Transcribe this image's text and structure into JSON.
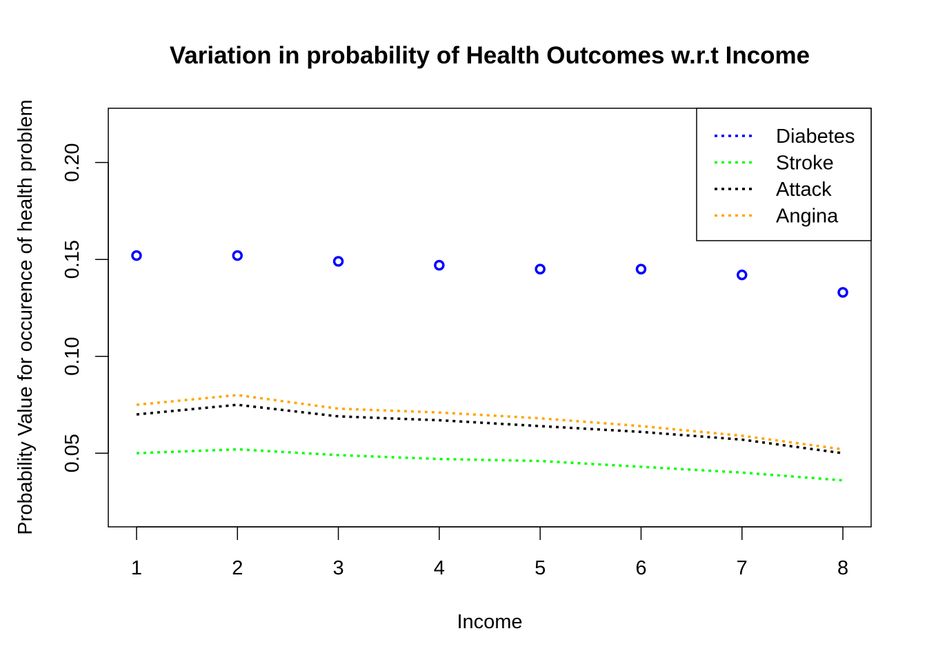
{
  "chart_data": {
    "type": "line",
    "title": "Variation in probability of Health Outcomes w.r.t Income",
    "xlabel": "Income",
    "ylabel": "Probability Value for occurence of health problem",
    "x": [
      1,
      2,
      3,
      4,
      5,
      6,
      7,
      8
    ],
    "x_ticks": [
      "1",
      "2",
      "3",
      "4",
      "5",
      "6",
      "7",
      "8"
    ],
    "y_ticks": [
      "0.05",
      "0.10",
      "0.15",
      "0.20"
    ],
    "y_tick_values": [
      0.05,
      0.1,
      0.15,
      0.2
    ],
    "xlim": [
      0.72,
      8.28
    ],
    "ylim": [
      0.012,
      0.228
    ],
    "grid": false,
    "legend_position": "top-right",
    "series": [
      {
        "name": "Diabetes",
        "color": "#0000FF",
        "values": [
          0.152,
          0.152,
          0.149,
          0.147,
          0.145,
          0.145,
          0.142,
          0.133
        ],
        "marker": "circle"
      },
      {
        "name": "Stroke",
        "color": "#00FF00",
        "values": [
          0.05,
          0.052,
          0.049,
          0.047,
          0.046,
          0.043,
          0.04,
          0.036
        ],
        "marker": "none"
      },
      {
        "name": "Attack",
        "color": "#000000",
        "values": [
          0.07,
          0.075,
          0.069,
          0.067,
          0.064,
          0.061,
          0.057,
          0.05
        ],
        "marker": "none"
      },
      {
        "name": "Angina",
        "color": "#FFA500",
        "values": [
          0.075,
          0.08,
          0.073,
          0.071,
          0.068,
          0.064,
          0.059,
          0.052
        ],
        "marker": "none"
      }
    ]
  }
}
